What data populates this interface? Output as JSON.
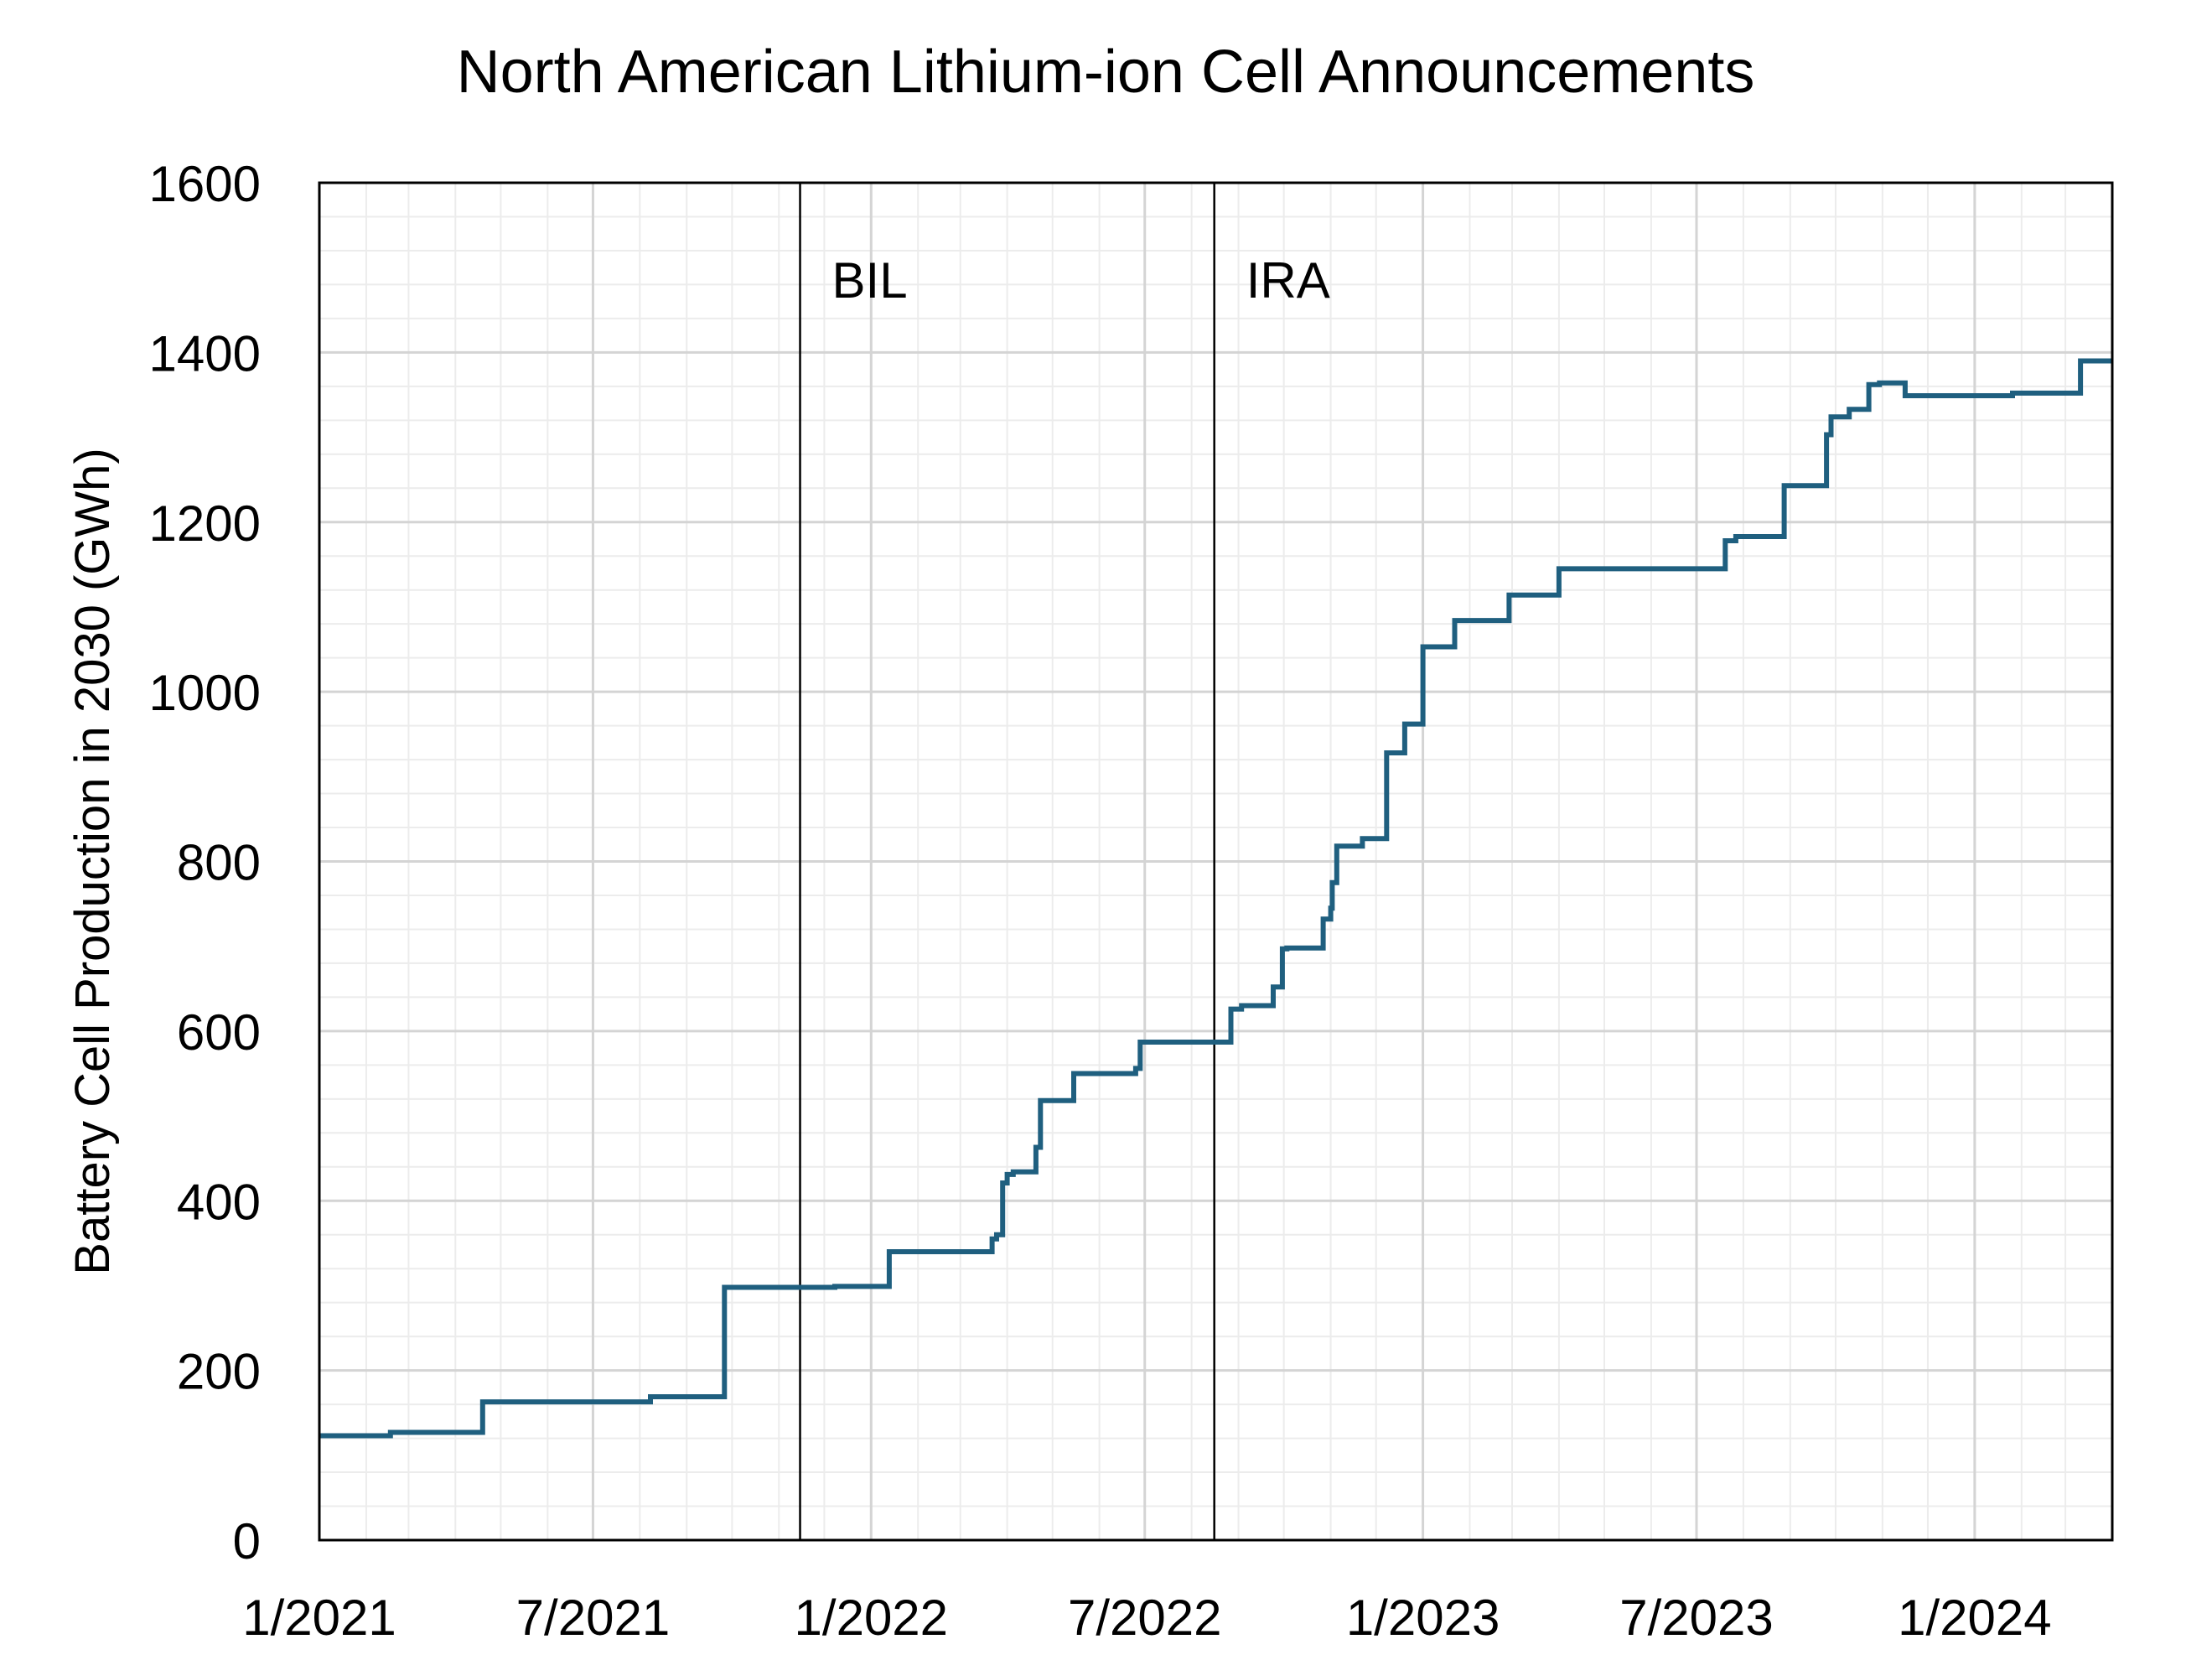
{
  "chart_data": {
    "type": "line",
    "title": "North American Lithium-ion Cell Announcements",
    "xlabel": "",
    "ylabel": "Battery Cell Production in 2030 (GWh)",
    "ylim": [
      0,
      1600
    ],
    "xlim": [
      "2021-01-01",
      "2024-04-01"
    ],
    "y_ticks": [
      "0",
      "200",
      "400",
      "600",
      "800",
      "1000",
      "1200",
      "1400",
      "1600"
    ],
    "x_ticks": [
      {
        "date": "2021-01-01",
        "label": "1/2021"
      },
      {
        "date": "2021-07-01",
        "label": "7/2021"
      },
      {
        "date": "2022-01-01",
        "label": "1/2022"
      },
      {
        "date": "2022-07-01",
        "label": "7/2022"
      },
      {
        "date": "2023-01-01",
        "label": "1/2023"
      },
      {
        "date": "2023-07-01",
        "label": "7/2023"
      },
      {
        "date": "2024-01-01",
        "label": "1/2024"
      }
    ],
    "grid": true,
    "step": true,
    "line_color": "#1f5f7f",
    "annotations": [
      {
        "label": "BIL",
        "date": "2021-11-15"
      },
      {
        "label": "IRA",
        "date": "2022-08-16"
      }
    ],
    "series": [
      {
        "name": "",
        "x": [
          "2021-01-01",
          "2021-02-17",
          "2021-04-19",
          "2021-08-08",
          "2021-09-26",
          "2021-12-08",
          "2022-01-13",
          "2022-03-22",
          "2022-03-25",
          "2022-03-29",
          "2022-04-01",
          "2022-04-05",
          "2022-04-20",
          "2022-04-23",
          "2022-05-15",
          "2022-06-25",
          "2022-06-28",
          "2022-08-27",
          "2022-09-03",
          "2022-09-24",
          "2022-09-30",
          "2022-10-03",
          "2022-10-27",
          "2022-11-01",
          "2022-11-02",
          "2022-11-05",
          "2022-11-22",
          "2022-12-08",
          "2022-12-20",
          "2023-01-01",
          "2023-01-22",
          "2023-02-27",
          "2023-03-01",
          "2023-04-01",
          "2023-05-01",
          "2023-07-20",
          "2023-07-27",
          "2023-08-28",
          "2023-09-25",
          "2023-09-28",
          "2023-10-10",
          "2023-10-23",
          "2023-10-30",
          "2023-11-16",
          "2024-01-26",
          "2024-03-11",
          "2024-04-01"
        ],
        "y": [
          123,
          127,
          163,
          169,
          298,
          299,
          340,
          355,
          360,
          421,
          431,
          434,
          463,
          518,
          550,
          556,
          587,
          626,
          630,
          652,
          697,
          698,
          732,
          745,
          775,
          818,
          827,
          928,
          962,
          1053,
          1084,
          1114,
          1114,
          1145,
          1145,
          1178,
          1183,
          1243,
          1303,
          1324,
          1333,
          1362,
          1364,
          1349,
          1352,
          1390,
          1390
        ]
      }
    ]
  }
}
